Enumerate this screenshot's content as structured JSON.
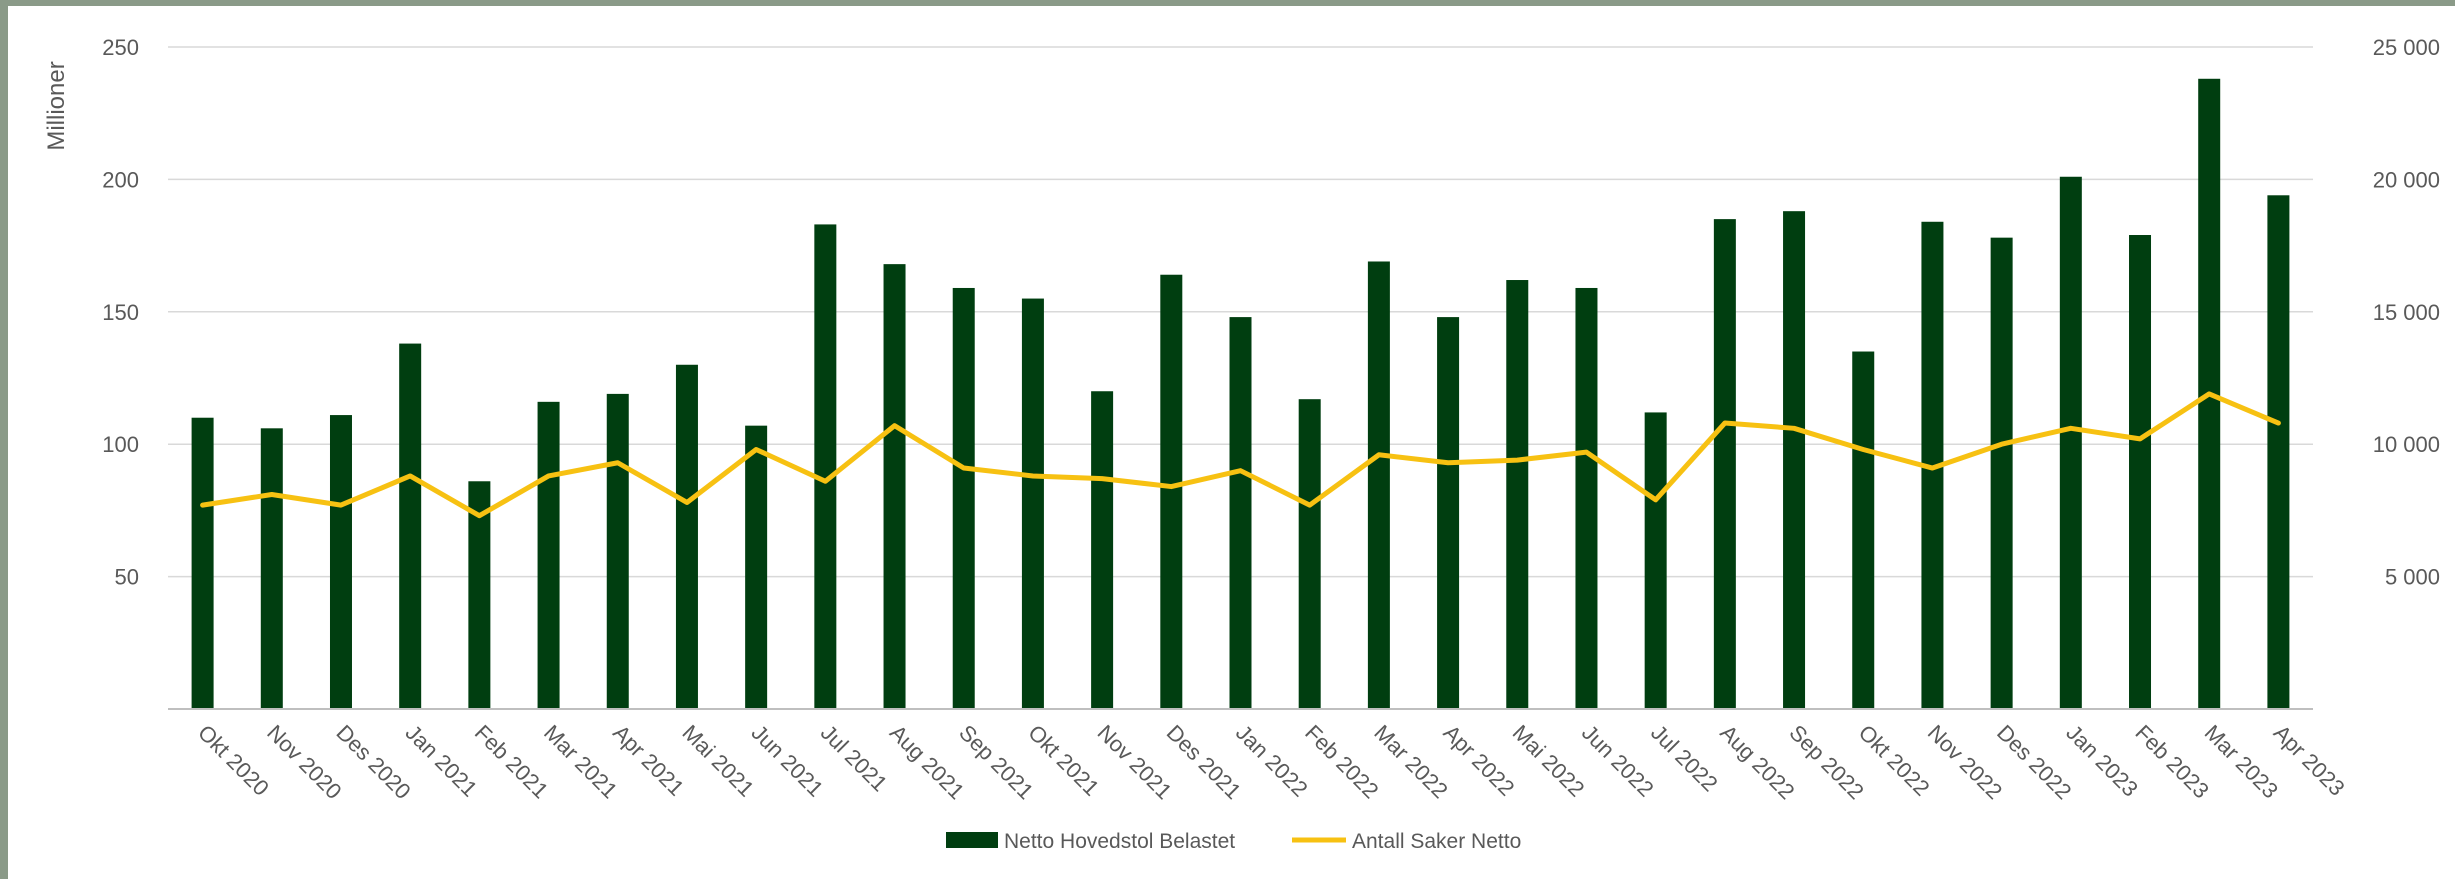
{
  "chart_data": {
    "type": "bar",
    "title": "",
    "xlabel": "",
    "ylabel": "Millioner",
    "ylabel_right": "",
    "ylim": [
      0,
      250
    ],
    "ylim_right": [
      0,
      25000
    ],
    "yticks": [
      "50",
      "100",
      "150",
      "200",
      "250"
    ],
    "yticks_right": [
      "5 000",
      "10 000",
      "15 000",
      "20 000",
      "25 000"
    ],
    "grid": true,
    "legend_position": "bottom",
    "colors": {
      "bar": "#003e10",
      "line": "#f7c112",
      "grid": "#d9d9d9",
      "text": "#595959"
    },
    "categories": [
      "Okt 2020",
      "Nov 2020",
      "Des 2020",
      "Jan 2021",
      "Feb 2021",
      "Mar 2021",
      "Apr 2021",
      "Mai 2021",
      "Jun 2021",
      "Jul 2021",
      "Aug 2021",
      "Sep 2021",
      "Okt 2021",
      "Nov 2021",
      "Des 2021",
      "Jan 2022",
      "Feb 2022",
      "Mar 2022",
      "Apr 2022",
      "Mai 2022",
      "Jun 2022",
      "Jul 2022",
      "Aug 2022",
      "Sep 2022",
      "Okt 2022",
      "Nov 2022",
      "Des 2022",
      "Jan 2023",
      "Feb 2023",
      "Mar 2023",
      "Apr 2023"
    ],
    "series": [
      {
        "name": "Netto Hovedstol Belastet",
        "type": "bar",
        "axis": "left",
        "values": [
          110,
          106,
          111,
          138,
          86,
          116,
          119,
          130,
          107,
          183,
          168,
          159,
          155,
          120,
          164,
          148,
          117,
          169,
          148,
          162,
          159,
          112,
          185,
          188,
          135,
          184,
          178,
          201,
          179,
          238,
          194
        ]
      },
      {
        "name": "Antall Saker Netto",
        "type": "line",
        "axis": "right",
        "values": [
          7700,
          8100,
          7700,
          8800,
          7300,
          8800,
          9300,
          7800,
          9800,
          8600,
          10700,
          9100,
          8800,
          8700,
          8400,
          9000,
          7700,
          9600,
          9300,
          9400,
          9700,
          7900,
          10800,
          10600,
          9800,
          9100,
          10000,
          10600,
          10200,
          11900,
          10800
        ]
      }
    ]
  }
}
